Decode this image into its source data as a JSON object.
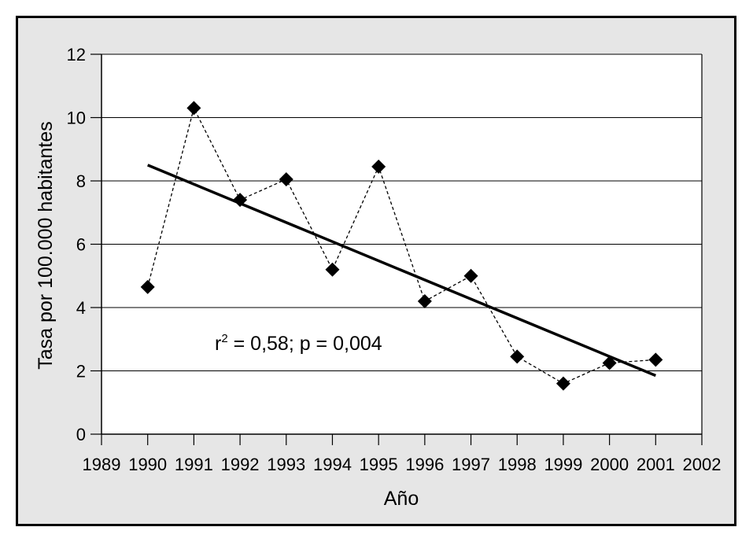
{
  "chart_data": {
    "type": "scatter",
    "title": "",
    "xlabel": "Año",
    "ylabel": "Tasa por 100.000 habitantes",
    "xlim": [
      1989,
      2002
    ],
    "ylim": [
      0,
      12
    ],
    "x_ticks": [
      1989,
      1990,
      1991,
      1992,
      1993,
      1994,
      1995,
      1996,
      1997,
      1998,
      1999,
      2000,
      2001,
      2002
    ],
    "y_ticks": [
      0,
      2,
      4,
      6,
      8,
      10,
      12
    ],
    "grid": "horizontal",
    "series": [
      {
        "style": "dashed-line-diamond-markers",
        "x": [
          1990,
          1991,
          1992,
          1993,
          1994,
          1995,
          1996,
          1997,
          1998,
          1999,
          2000,
          2001
        ],
        "y": [
          4.65,
          10.3,
          7.4,
          8.05,
          5.2,
          8.45,
          4.2,
          5.0,
          2.45,
          1.6,
          2.25,
          2.35
        ]
      }
    ],
    "trendline": {
      "x": [
        1990,
        2001
      ],
      "y": [
        8.5,
        1.85
      ]
    },
    "annotation": {
      "r_prefix": "r",
      "r_superscript": "2",
      "rest": " = 0,58; p = 0,004"
    }
  }
}
